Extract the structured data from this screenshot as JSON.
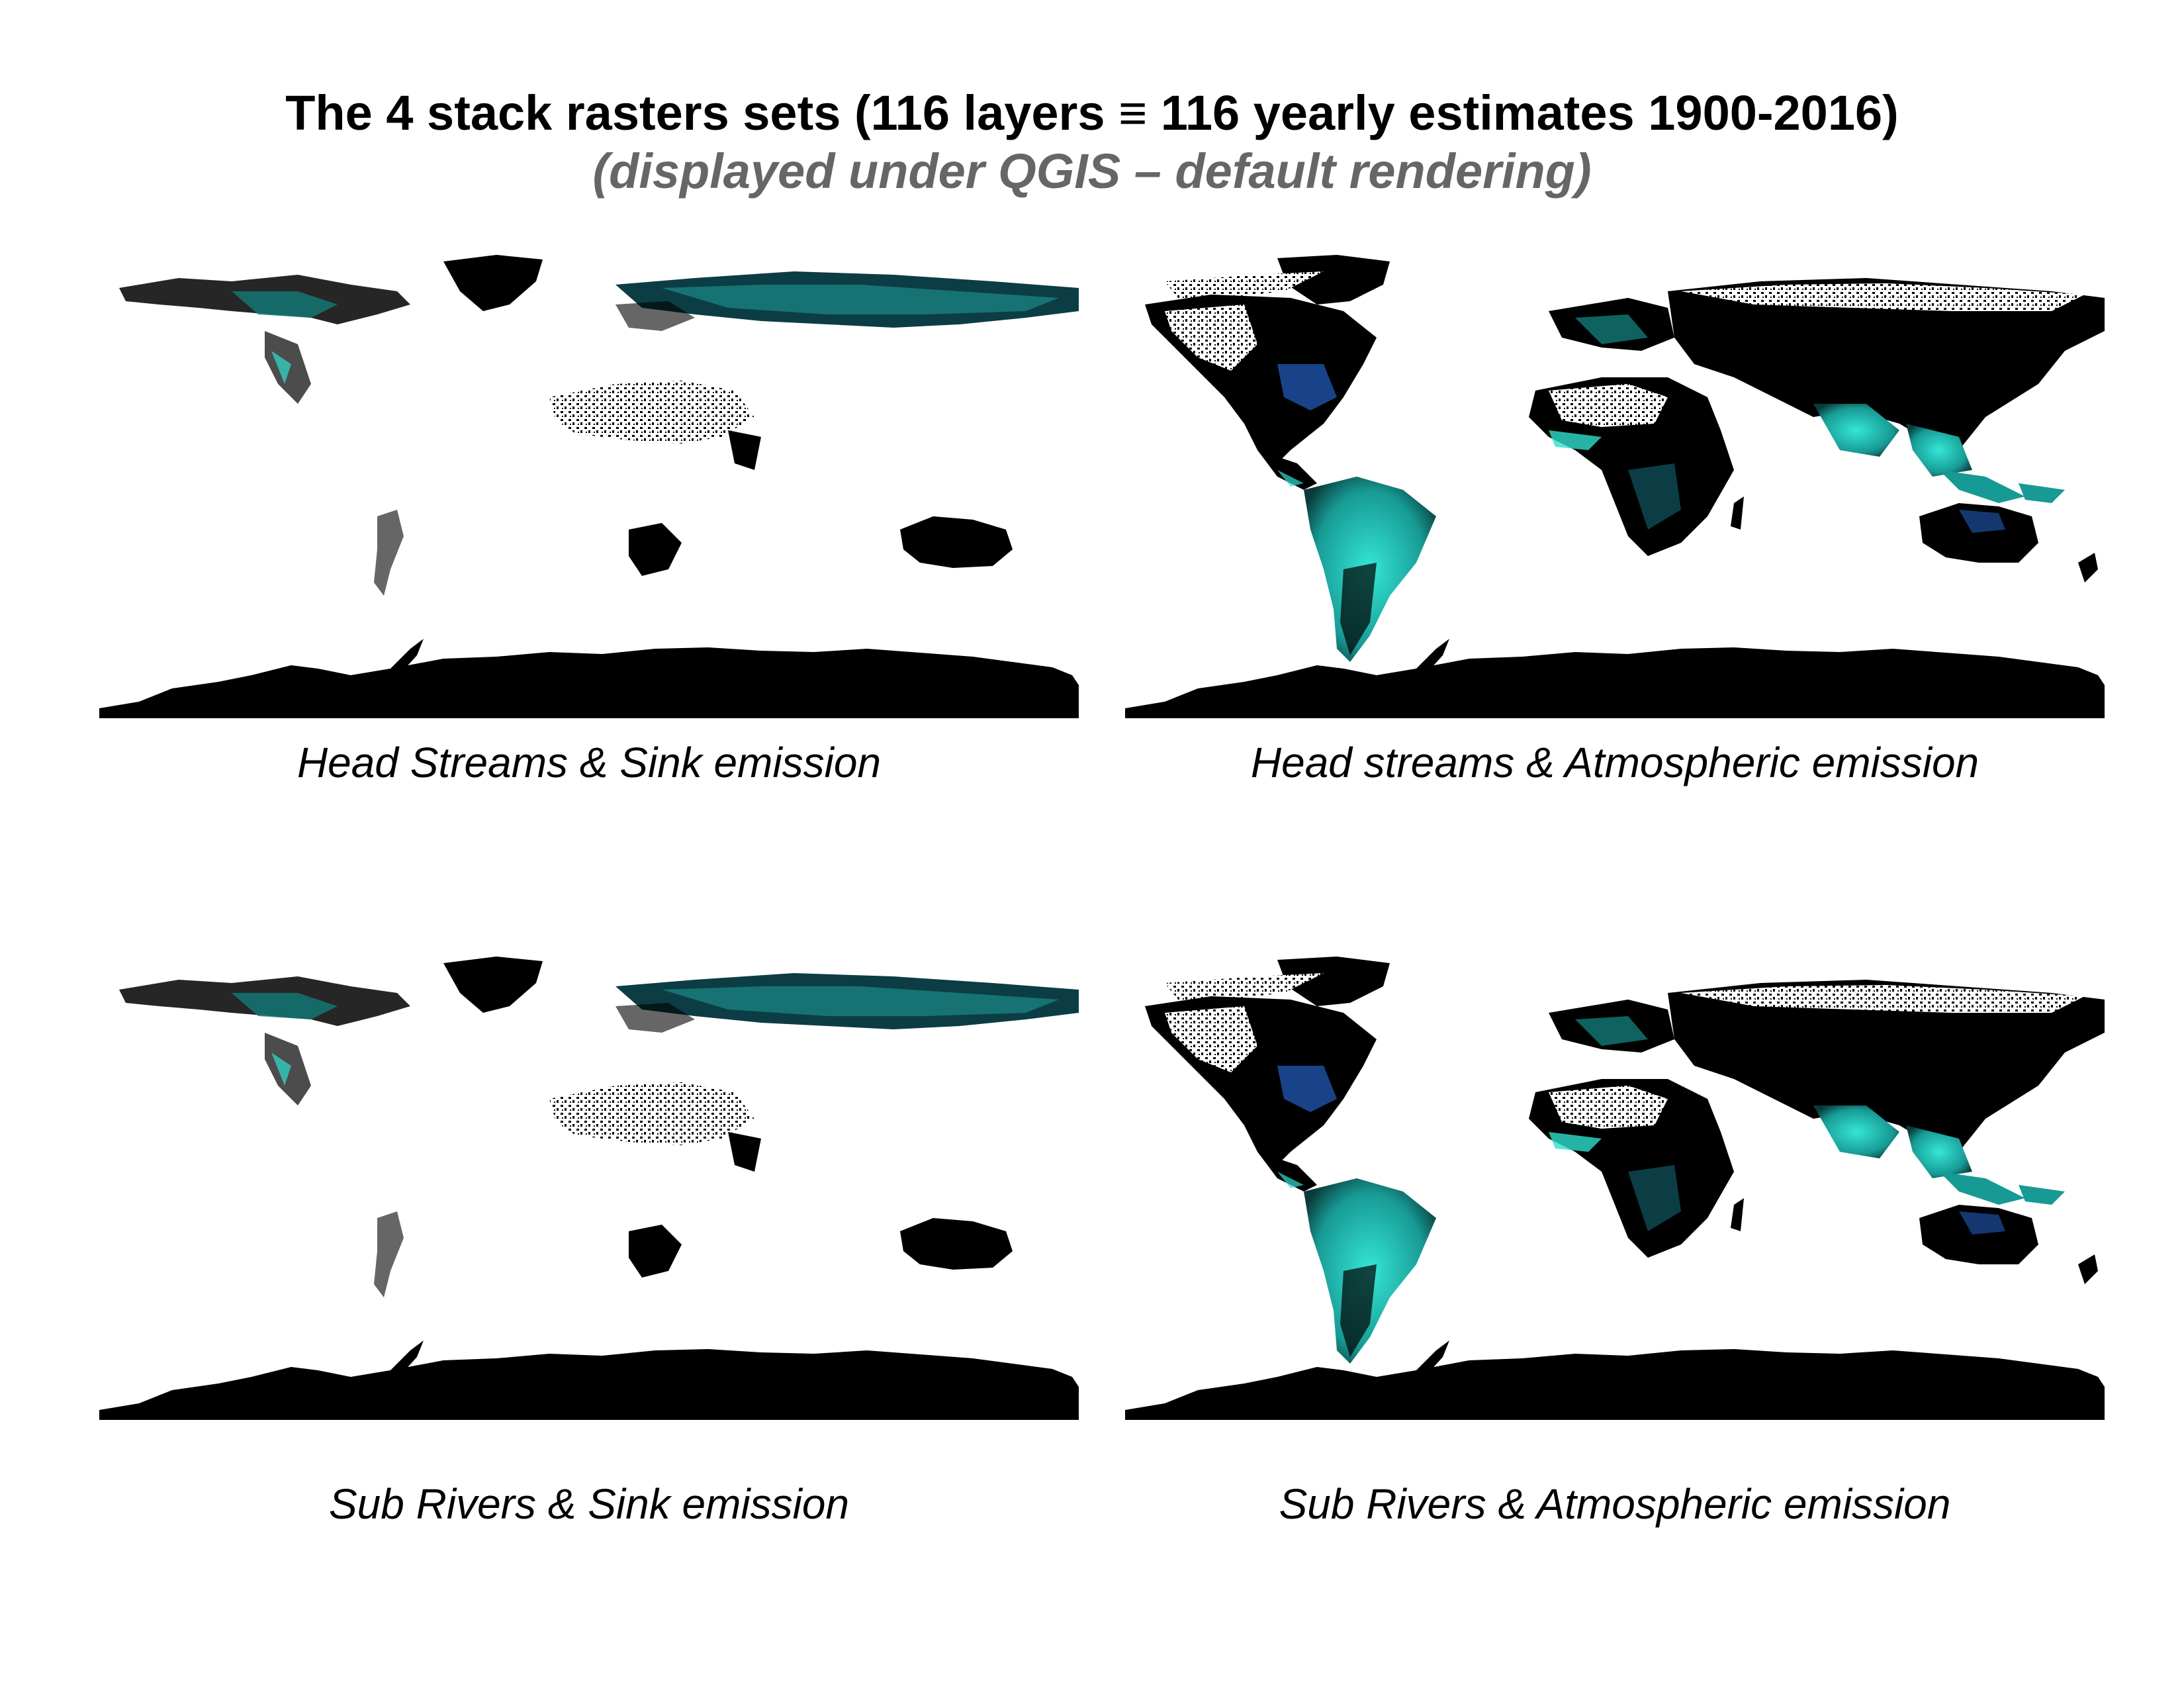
{
  "title": "The 4 stack rasters sets (116 layers ≡ 116 yearly estimates 1900-2016)",
  "subtitle": "(displayed under QGIS – default rendering)",
  "colors": {
    "land": "#000000",
    "highlight": "#2fe0d0",
    "highlight_dark": "#127a78",
    "blue": "#1d4fa0",
    "green": "#3fd25a",
    "subtitle": "#666666"
  },
  "panels": [
    {
      "caption": "Head Streams & Sink emission",
      "variant": "sink-head"
    },
    {
      "caption": "Head streams & Atmospheric emission",
      "variant": "atmo-head"
    },
    {
      "caption": "Sub Rivers & Sink emission",
      "variant": "sink-sub"
    },
    {
      "caption": "Sub Rivers & Atmospheric emission",
      "variant": "atmo-sub"
    }
  ]
}
